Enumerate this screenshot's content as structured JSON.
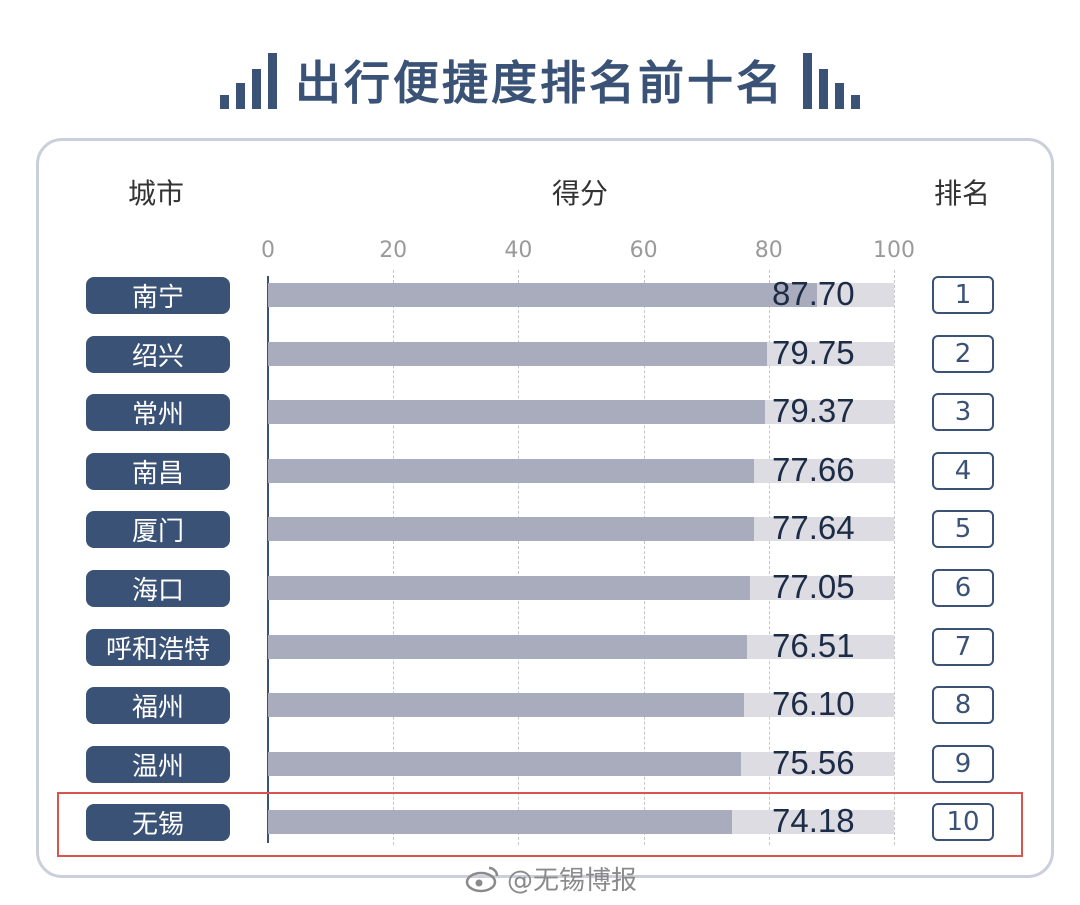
{
  "title": "出行便捷度排名前十名",
  "header": {
    "city": "城市",
    "score": "得分",
    "rank": "排名"
  },
  "watermark": "@无锡博报",
  "colors": {
    "accent": "#3b5277",
    "bar": "#a9acbd",
    "track": "#dcdce2",
    "highlight": "#d9534f"
  },
  "icons": {
    "left": "bar-chart-ascending-icon",
    "right": "bar-chart-descending-icon",
    "watermark": "weibo-icon"
  },
  "chart_data": {
    "type": "bar",
    "orientation": "horizontal",
    "title": "出行便捷度排名前十名",
    "xlabel": "得分",
    "ylabel": "城市",
    "xlim": [
      0,
      100
    ],
    "ticks": [
      "0",
      "20",
      "40",
      "60",
      "80",
      "100"
    ],
    "grid": true,
    "highlighted_category": "无锡",
    "categories": [
      "南宁",
      "绍兴",
      "常州",
      "南昌",
      "厦门",
      "海口",
      "呼和浩特",
      "福州",
      "温州",
      "无锡"
    ],
    "values": [
      87.7,
      79.75,
      79.37,
      77.66,
      77.64,
      77.05,
      76.51,
      76.1,
      75.56,
      74.18
    ],
    "value_labels": [
      "87.70",
      "79.75",
      "79.37",
      "77.66",
      "77.64",
      "77.05",
      "76.51",
      "76.10",
      "75.56",
      "74.18"
    ],
    "ranks": [
      "1",
      "2",
      "3",
      "4",
      "5",
      "6",
      "7",
      "8",
      "9",
      "10"
    ]
  }
}
